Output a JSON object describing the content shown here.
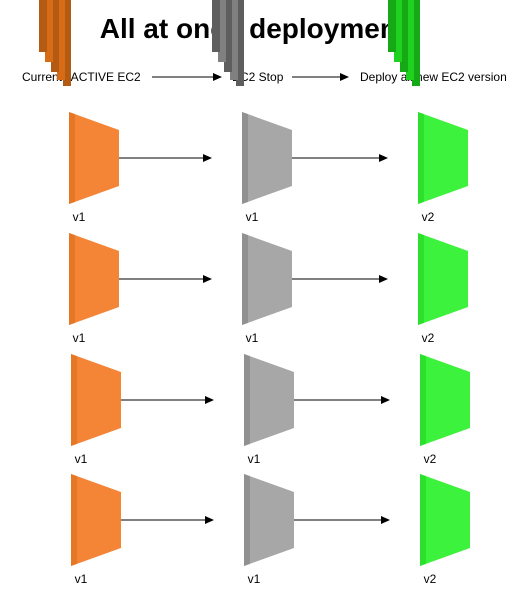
{
  "title": "All at once deployment",
  "stages": [
    {
      "label": "Currents ACTIVE EC2",
      "color": {
        "dark": "#b35b13",
        "mid": "#d86c16",
        "face": "#f58536"
      }
    },
    {
      "label": "EC2 Stop",
      "color": {
        "dark": "#5e5e5e",
        "mid": "#808080",
        "face": "#a7a7a7"
      }
    },
    {
      "label": "Deploy all new EC2 version",
      "color": {
        "dark": "#16a916",
        "mid": "#1fd21f",
        "face": "#3cf23c"
      }
    }
  ],
  "rows": [
    {
      "versions": [
        "v1",
        "v1",
        "v2"
      ]
    },
    {
      "versions": [
        "v1",
        "v1",
        "v2"
      ]
    },
    {
      "versions": [
        "v1",
        "v1",
        "v2"
      ]
    },
    {
      "versions": [
        "v1",
        "v1",
        "v2"
      ]
    }
  ],
  "icons": {
    "instance_icon": "ec2-instance-icon"
  }
}
